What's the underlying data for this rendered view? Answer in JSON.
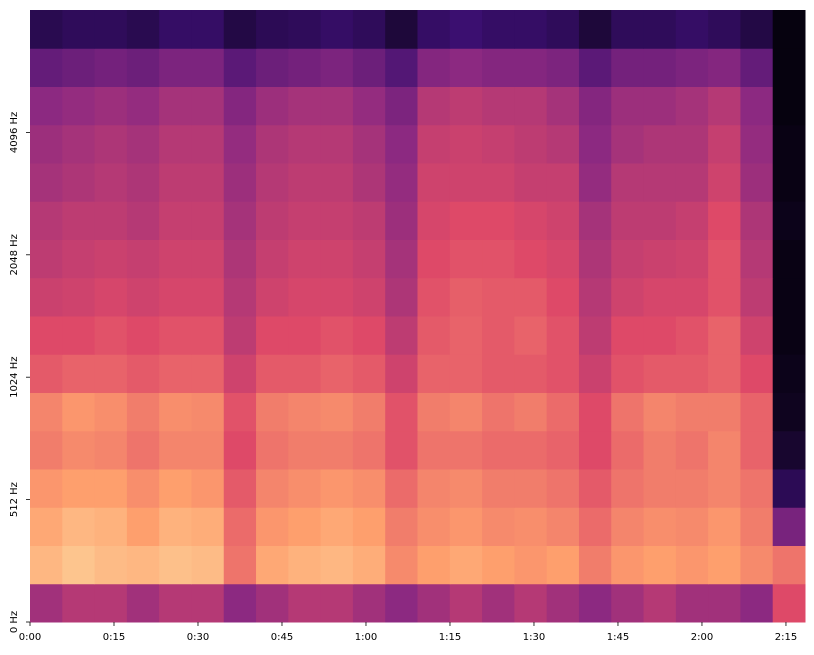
{
  "chart_data": {
    "type": "spectrogram",
    "xlim": [
      0,
      138.4
    ],
    "xticks": [
      {
        "value": 0,
        "label": "0:00"
      },
      {
        "value": 15,
        "label": "0:15"
      },
      {
        "value": 30,
        "label": "0:30"
      },
      {
        "value": 45,
        "label": "0:45"
      },
      {
        "value": 60,
        "label": "1:00"
      },
      {
        "value": 75,
        "label": "1:15"
      },
      {
        "value": 90,
        "label": "1:30"
      },
      {
        "value": 105,
        "label": "1:45"
      },
      {
        "value": 120,
        "label": "2:00"
      },
      {
        "value": 135,
        "label": "2:15"
      }
    ],
    "ylim": [
      0,
      8192
    ],
    "yscale": "symlog",
    "linthresh": 512,
    "logbase": 2,
    "yticks": [
      {
        "value": 0,
        "label": "0 Hz"
      },
      {
        "value": 512,
        "label": "512 Hz"
      },
      {
        "value": 1024,
        "label": "1024 Hz"
      },
      {
        "value": 2048,
        "label": "2048 Hz"
      },
      {
        "value": 4096,
        "label": "4096 Hz"
      }
    ],
    "zlim": [
      0,
      1
    ],
    "colorscale": [
      "#000004",
      "#3b0f70",
      "#8c2981",
      "#de4968",
      "#fe9f6d",
      "#fcfdbf"
    ],
    "z": [
      [
        0.45,
        0.5,
        0.5,
        0.45,
        0.5,
        0.5,
        0.4,
        0.45,
        0.5,
        0.5,
        0.45,
        0.4,
        0.45,
        0.5,
        0.45,
        0.5,
        0.45,
        0.4,
        0.45,
        0.5,
        0.45,
        0.45,
        0.4,
        0.6
      ],
      [
        0.85,
        0.88,
        0.86,
        0.85,
        0.87,
        0.86,
        0.7,
        0.82,
        0.84,
        0.85,
        0.83,
        0.75,
        0.8,
        0.82,
        0.8,
        0.78,
        0.8,
        0.72,
        0.78,
        0.8,
        0.78,
        0.8,
        0.75,
        0.7
      ],
      [
        0.82,
        0.85,
        0.84,
        0.8,
        0.84,
        0.83,
        0.68,
        0.78,
        0.8,
        0.82,
        0.8,
        0.72,
        0.76,
        0.78,
        0.75,
        0.76,
        0.74,
        0.68,
        0.74,
        0.76,
        0.75,
        0.78,
        0.72,
        0.35
      ],
      [
        0.78,
        0.8,
        0.8,
        0.76,
        0.8,
        0.78,
        0.64,
        0.74,
        0.76,
        0.78,
        0.76,
        0.68,
        0.74,
        0.75,
        0.72,
        0.72,
        0.7,
        0.64,
        0.7,
        0.72,
        0.72,
        0.74,
        0.7,
        0.15
      ],
      [
        0.72,
        0.75,
        0.74,
        0.7,
        0.74,
        0.74,
        0.6,
        0.7,
        0.72,
        0.72,
        0.7,
        0.62,
        0.7,
        0.7,
        0.68,
        0.68,
        0.66,
        0.6,
        0.68,
        0.72,
        0.7,
        0.74,
        0.66,
        0.08
      ],
      [
        0.74,
        0.78,
        0.76,
        0.72,
        0.76,
        0.75,
        0.62,
        0.72,
        0.74,
        0.75,
        0.72,
        0.62,
        0.72,
        0.74,
        0.7,
        0.72,
        0.68,
        0.6,
        0.7,
        0.74,
        0.72,
        0.72,
        0.66,
        0.05
      ],
      [
        0.64,
        0.66,
        0.66,
        0.64,
        0.66,
        0.66,
        0.56,
        0.64,
        0.64,
        0.66,
        0.64,
        0.56,
        0.66,
        0.66,
        0.64,
        0.64,
        0.62,
        0.55,
        0.62,
        0.64,
        0.64,
        0.66,
        0.6,
        0.04
      ],
      [
        0.6,
        0.6,
        0.62,
        0.6,
        0.62,
        0.62,
        0.52,
        0.6,
        0.6,
        0.62,
        0.6,
        0.52,
        0.64,
        0.66,
        0.64,
        0.66,
        0.62,
        0.52,
        0.6,
        0.6,
        0.62,
        0.66,
        0.56,
        0.03
      ],
      [
        0.55,
        0.56,
        0.58,
        0.56,
        0.58,
        0.58,
        0.5,
        0.56,
        0.58,
        0.58,
        0.56,
        0.48,
        0.62,
        0.65,
        0.64,
        0.64,
        0.6,
        0.5,
        0.56,
        0.58,
        0.58,
        0.62,
        0.52,
        0.03
      ],
      [
        0.52,
        0.54,
        0.55,
        0.54,
        0.56,
        0.56,
        0.48,
        0.54,
        0.56,
        0.56,
        0.54,
        0.46,
        0.6,
        0.62,
        0.62,
        0.6,
        0.58,
        0.48,
        0.54,
        0.55,
        0.56,
        0.62,
        0.5,
        0.03
      ],
      [
        0.5,
        0.52,
        0.52,
        0.5,
        0.54,
        0.54,
        0.46,
        0.52,
        0.54,
        0.54,
        0.52,
        0.44,
        0.58,
        0.6,
        0.6,
        0.58,
        0.56,
        0.46,
        0.52,
        0.52,
        0.54,
        0.6,
        0.48,
        0.04
      ],
      [
        0.46,
        0.48,
        0.5,
        0.48,
        0.52,
        0.52,
        0.44,
        0.5,
        0.52,
        0.52,
        0.48,
        0.42,
        0.56,
        0.56,
        0.56,
        0.54,
        0.54,
        0.42,
        0.5,
        0.5,
        0.5,
        0.56,
        0.44,
        0.03
      ],
      [
        0.44,
        0.46,
        0.48,
        0.46,
        0.5,
        0.5,
        0.42,
        0.48,
        0.5,
        0.5,
        0.46,
        0.4,
        0.54,
        0.55,
        0.54,
        0.52,
        0.5,
        0.4,
        0.46,
        0.48,
        0.48,
        0.54,
        0.42,
        0.03
      ],
      [
        0.4,
        0.42,
        0.44,
        0.42,
        0.46,
        0.46,
        0.38,
        0.44,
        0.46,
        0.46,
        0.42,
        0.36,
        0.5,
        0.52,
        0.5,
        0.5,
        0.46,
        0.38,
        0.44,
        0.44,
        0.46,
        0.5,
        0.4,
        0.02
      ],
      [
        0.3,
        0.32,
        0.34,
        0.32,
        0.36,
        0.36,
        0.28,
        0.32,
        0.34,
        0.36,
        0.32,
        0.26,
        0.38,
        0.4,
        0.38,
        0.38,
        0.36,
        0.28,
        0.34,
        0.34,
        0.36,
        0.38,
        0.3,
        0.02
      ],
      [
        0.14,
        0.16,
        0.16,
        0.14,
        0.18,
        0.18,
        0.12,
        0.15,
        0.16,
        0.18,
        0.16,
        0.1,
        0.18,
        0.2,
        0.18,
        0.18,
        0.16,
        0.1,
        0.16,
        0.16,
        0.18,
        0.16,
        0.12,
        0.02
      ]
    ]
  }
}
